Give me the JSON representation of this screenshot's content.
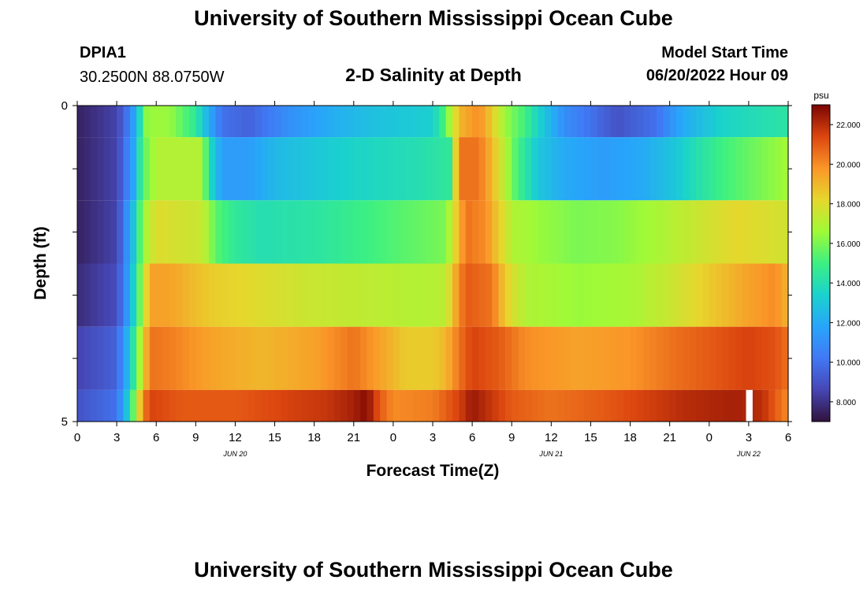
{
  "header": {
    "title": "University of Southern Mississippi Ocean Cube",
    "station_id": "DPIA1",
    "coordinates": "30.2500N  88.0750W",
    "subtitle": "2-D Salinity at Depth",
    "model_start_label": "Model Start Time",
    "model_start_value": "06/20/2022 Hour 09"
  },
  "footer": {
    "title": "University of Southern Mississippi Ocean Cube"
  },
  "chart_data": {
    "type": "heatmap",
    "title": "2-D Salinity at Depth",
    "xlabel": "Forecast Time(Z)",
    "ylabel": "Depth (ft)",
    "x_hours_range": [
      0,
      54
    ],
    "x_tick_step_hours": 3,
    "x_tick_labels": [
      "0",
      "3",
      "6",
      "9",
      "12",
      "15",
      "18",
      "21",
      "0",
      "3",
      "6",
      "9",
      "12",
      "15",
      "18",
      "21",
      "0",
      "3",
      "6"
    ],
    "date_labels": [
      {
        "hour": 12,
        "label": "JUN 20"
      },
      {
        "hour": 36,
        "label": "JUN 21"
      },
      {
        "hour": 51,
        "label": "JUN 22"
      }
    ],
    "y_range": [
      0,
      5
    ],
    "y_tick_labels": [
      {
        "value": 0,
        "label": "0"
      },
      {
        "value": 5,
        "label": "5"
      }
    ],
    "y_minor_ticks": [
      1,
      2,
      3,
      4
    ],
    "colorbar": {
      "unit": "psu",
      "min": 7.0,
      "max": 23.0,
      "tick_values": [
        8,
        10,
        12,
        14,
        16,
        18,
        20,
        22
      ],
      "tick_labels": [
        "8.000",
        "10.000",
        "12.000",
        "14.000",
        "16.000",
        "18.000",
        "20.000",
        "22.000"
      ],
      "colormap": "turbo"
    },
    "layers": [
      {
        "depth_range": [
          0,
          0.5
        ],
        "keyframes": [
          [
            0,
            7.5
          ],
          [
            3,
            8.5
          ],
          [
            4,
            10.5
          ],
          [
            4.6,
            13
          ],
          [
            5.3,
            16.5
          ],
          [
            7,
            16.5
          ],
          [
            9,
            14.5
          ],
          [
            10,
            12
          ],
          [
            11,
            10
          ],
          [
            13,
            9.5
          ],
          [
            16,
            11
          ],
          [
            19,
            12
          ],
          [
            22,
            12.7
          ],
          [
            27,
            13.3
          ],
          [
            27.8,
            15
          ],
          [
            29,
            19
          ],
          [
            30.5,
            20
          ],
          [
            31.5,
            18.5
          ],
          [
            32.5,
            16.5
          ],
          [
            34,
            15
          ],
          [
            35,
            13.5
          ],
          [
            37,
            11
          ],
          [
            39,
            10
          ],
          [
            41,
            9
          ],
          [
            44,
            10
          ],
          [
            46,
            12
          ],
          [
            49,
            13.5
          ],
          [
            54,
            14.3
          ]
        ]
      },
      {
        "depth_range": [
          0.5,
          1.5
        ],
        "keyframes": [
          [
            0,
            7.5
          ],
          [
            3,
            8.5
          ],
          [
            4.2,
            11.5
          ],
          [
            5,
            15.5
          ],
          [
            6,
            17
          ],
          [
            9.5,
            17
          ],
          [
            10,
            14
          ],
          [
            11,
            11.5
          ],
          [
            13,
            11.5
          ],
          [
            15,
            12.5
          ],
          [
            18,
            13
          ],
          [
            21,
            13.5
          ],
          [
            26,
            14
          ],
          [
            28.3,
            14.5
          ],
          [
            29,
            20.5
          ],
          [
            30.5,
            20.5
          ],
          [
            31.5,
            19
          ],
          [
            32.5,
            17
          ],
          [
            33.5,
            15
          ],
          [
            35,
            13
          ],
          [
            37,
            12
          ],
          [
            40,
            11.5
          ],
          [
            43,
            12
          ],
          [
            45.5,
            13
          ],
          [
            47,
            14
          ],
          [
            49,
            15
          ],
          [
            54,
            16.7
          ]
        ]
      },
      {
        "depth_range": [
          1.5,
          2.5
        ],
        "keyframes": [
          [
            0,
            7.5
          ],
          [
            3,
            8.5
          ],
          [
            4.2,
            12.5
          ],
          [
            5,
            16.5
          ],
          [
            6,
            18
          ],
          [
            9.5,
            17.5
          ],
          [
            10.5,
            15.5
          ],
          [
            12,
            14.5
          ],
          [
            14,
            14
          ],
          [
            18,
            14.3
          ],
          [
            21,
            14.8
          ],
          [
            25,
            15.5
          ],
          [
            28,
            16
          ],
          [
            28.8,
            18.5
          ],
          [
            29.5,
            20.5
          ],
          [
            31,
            20
          ],
          [
            32,
            18.5
          ],
          [
            33,
            17
          ],
          [
            35,
            16.5
          ],
          [
            38,
            16
          ],
          [
            41,
            16.2
          ],
          [
            44,
            16.8
          ],
          [
            47,
            17.5
          ],
          [
            50,
            18.2
          ],
          [
            54,
            17.7
          ]
        ]
      },
      {
        "depth_range": [
          2.5,
          3.5
        ],
        "keyframes": [
          [
            0,
            7.8
          ],
          [
            3,
            8.8
          ],
          [
            4,
            12
          ],
          [
            5,
            17
          ],
          [
            5.5,
            19.5
          ],
          [
            7,
            19.5
          ],
          [
            10,
            18.5
          ],
          [
            14,
            18
          ],
          [
            18,
            17.5
          ],
          [
            22,
            17.3
          ],
          [
            26,
            17
          ],
          [
            28,
            17.2
          ],
          [
            28.8,
            19.5
          ],
          [
            29.5,
            21
          ],
          [
            31.5,
            20.5
          ],
          [
            32.5,
            18.5
          ],
          [
            34,
            17
          ],
          [
            38,
            16.5
          ],
          [
            42,
            16.8
          ],
          [
            45,
            17.5
          ],
          [
            48,
            18.5
          ],
          [
            51,
            19.5
          ],
          [
            53,
            20
          ],
          [
            54,
            19
          ]
        ]
      },
      {
        "depth_range": [
          3.5,
          4.5
        ],
        "keyframes": [
          [
            0,
            8.5
          ],
          [
            3,
            9.5
          ],
          [
            4,
            13
          ],
          [
            5,
            18
          ],
          [
            5.5,
            20.5
          ],
          [
            7,
            20.3
          ],
          [
            10,
            19.5
          ],
          [
            14,
            19
          ],
          [
            18,
            19.5
          ],
          [
            21,
            20.5
          ],
          [
            23,
            19.5
          ],
          [
            25,
            18.5
          ],
          [
            27,
            18.5
          ],
          [
            28,
            19
          ],
          [
            29,
            20.5
          ],
          [
            30,
            21.5
          ],
          [
            32,
            21
          ],
          [
            34,
            20
          ],
          [
            38,
            19.5
          ],
          [
            42,
            19.8
          ],
          [
            45,
            20.5
          ],
          [
            48,
            21
          ],
          [
            51,
            21.5
          ],
          [
            53,
            21.2
          ],
          [
            54,
            20.5
          ]
        ]
      },
      {
        "depth_range": [
          4.5,
          5
        ],
        "keyframes": [
          [
            0,
            9
          ],
          [
            3,
            10
          ],
          [
            3.8,
            13
          ],
          [
            4.5,
            17
          ],
          [
            5,
            20
          ],
          [
            5.5,
            21.5
          ],
          [
            8,
            21
          ],
          [
            12,
            21
          ],
          [
            16,
            21.5
          ],
          [
            19,
            21.8
          ],
          [
            21,
            22.3
          ],
          [
            22,
            22.8
          ],
          [
            23,
            21
          ],
          [
            24,
            20
          ],
          [
            27,
            20.3
          ],
          [
            29,
            21.5
          ],
          [
            30,
            22.5
          ],
          [
            31,
            22
          ],
          [
            33,
            21
          ],
          [
            36,
            20.5
          ],
          [
            40,
            21
          ],
          [
            43,
            21.5
          ],
          [
            46,
            22
          ],
          [
            50,
            22.3
          ],
          [
            52,
            22
          ],
          [
            53,
            21
          ],
          [
            54,
            20
          ]
        ]
      }
    ],
    "missing_cells": [
      {
        "depth_range": [
          4.5,
          5
        ],
        "hour_range": [
          50.8,
          51.3
        ]
      }
    ]
  }
}
